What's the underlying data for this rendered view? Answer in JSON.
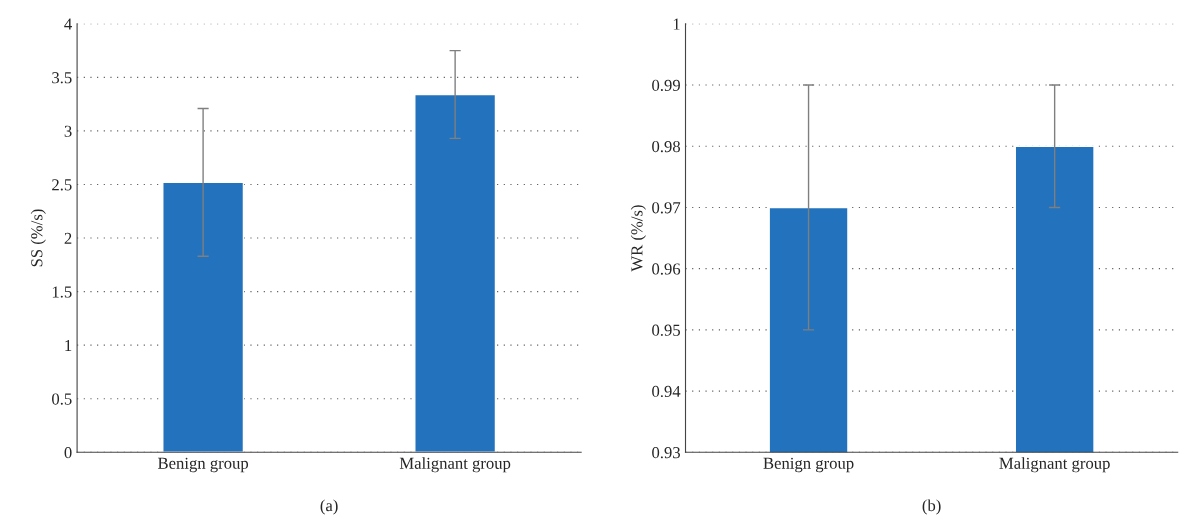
{
  "chart_data": [
    {
      "type": "bar",
      "categories": [
        "Benign group",
        "Malignant group"
      ],
      "ylabel": "SS (%/s)",
      "ylim": [
        0,
        4
      ],
      "yticks": [
        0,
        0.5,
        1,
        1.5,
        2,
        2.5,
        3,
        3.5,
        4
      ],
      "grid": "y",
      "annotations": [
        "(a)"
      ],
      "series": [
        {
          "color": "#2272bd",
          "values": [
            2.52,
            3.34
          ],
          "errors": [
            [
              1.83,
              3.21
            ],
            [
              2.93,
              3.75
            ]
          ]
        }
      ]
    },
    {
      "type": "bar",
      "categories": [
        "Benign group",
        "Malignant group"
      ],
      "ylabel": "WR (%/s)",
      "ylim": [
        0.93,
        1
      ],
      "yticks": [
        0.93,
        0.94,
        0.95,
        0.96,
        0.97,
        0.98,
        0.99,
        1
      ],
      "grid": "y",
      "annotations": [
        "(b)"
      ],
      "series": [
        {
          "color": "#2272bd",
          "values": [
            0.97,
            0.98
          ],
          "errors": [
            [
              0.95,
              0.99
            ],
            [
              0.97,
              0.99
            ]
          ]
        }
      ]
    }
  ]
}
